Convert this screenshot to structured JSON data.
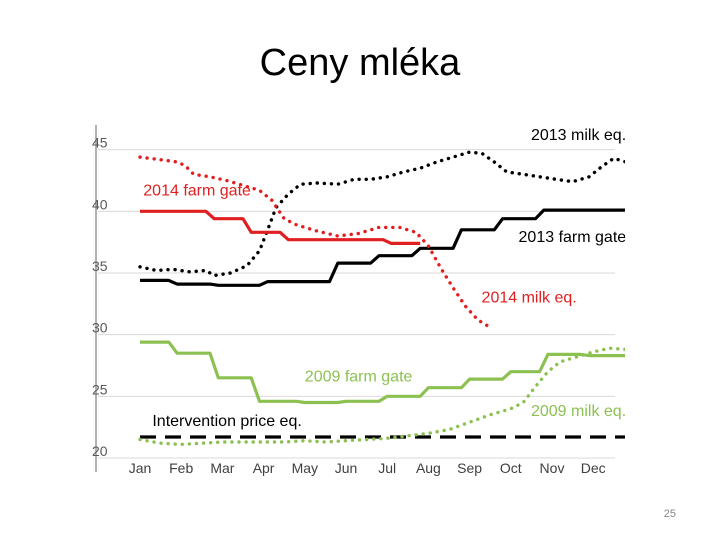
{
  "slide": {
    "title": "Ceny mléka",
    "page_number": "25"
  },
  "chart_data": {
    "type": "line",
    "title": "",
    "xlabel": "",
    "ylabel": "",
    "ylim": [
      20,
      47
    ],
    "yticks": [
      "20",
      "25",
      "30",
      "35",
      "40",
      "45"
    ],
    "months": [
      "Jan",
      "Feb",
      "Mar",
      "Apr",
      "May",
      "Jun",
      "Jul",
      "Aug",
      "Sep",
      "Oct",
      "Nov",
      "Dec"
    ],
    "grid": true,
    "series": [
      {
        "name": "2013 milk eq.",
        "color": "#000000",
        "style": "dotted",
        "points": [
          [
            0,
            35.5
          ],
          [
            0.4,
            35.2
          ],
          [
            0.8,
            35.3
          ],
          [
            1.2,
            35.1
          ],
          [
            1.6,
            35.2
          ],
          [
            1.8,
            34.8
          ],
          [
            2.2,
            35.0
          ],
          [
            2.6,
            35.6
          ],
          [
            2.9,
            36.8
          ],
          [
            3.1,
            38.5
          ],
          [
            3.3,
            40.3
          ],
          [
            3.6,
            41.4
          ],
          [
            3.9,
            42.2
          ],
          [
            4.3,
            42.3
          ],
          [
            4.8,
            42.2
          ],
          [
            5.2,
            42.6
          ],
          [
            5.6,
            42.6
          ],
          [
            6.0,
            42.8
          ],
          [
            6.4,
            43.2
          ],
          [
            6.8,
            43.5
          ],
          [
            7.2,
            44.0
          ],
          [
            7.6,
            44.4
          ],
          [
            8.0,
            44.8
          ],
          [
            8.3,
            44.7
          ],
          [
            8.6,
            44.0
          ],
          [
            8.9,
            43.2
          ],
          [
            9.3,
            43.0
          ],
          [
            9.7,
            42.8
          ],
          [
            10.1,
            42.6
          ],
          [
            10.5,
            42.4
          ],
          [
            10.9,
            42.8
          ],
          [
            11.2,
            43.6
          ],
          [
            11.5,
            44.3
          ],
          [
            11.8,
            44.0
          ]
        ]
      },
      {
        "name": "2013 farm gate",
        "color": "#000000",
        "style": "solid",
        "points": [
          [
            0,
            34.4
          ],
          [
            0.7,
            34.4
          ],
          [
            0.9,
            34.1
          ],
          [
            1.7,
            34.1
          ],
          [
            1.9,
            34.0
          ],
          [
            2.9,
            34.0
          ],
          [
            3.1,
            34.3
          ],
          [
            4.6,
            34.3
          ],
          [
            4.8,
            35.8
          ],
          [
            5.6,
            35.8
          ],
          [
            5.8,
            36.4
          ],
          [
            6.6,
            36.4
          ],
          [
            6.8,
            37.0
          ],
          [
            7.6,
            37.0
          ],
          [
            7.8,
            38.5
          ],
          [
            8.6,
            38.5
          ],
          [
            8.8,
            39.4
          ],
          [
            9.6,
            39.4
          ],
          [
            9.8,
            40.1
          ],
          [
            11.8,
            40.1
          ]
        ]
      },
      {
        "name": "2014 farm gate",
        "color": "#e02020",
        "style": "solid",
        "points": [
          [
            0,
            40.0
          ],
          [
            1.6,
            40.0
          ],
          [
            1.8,
            39.4
          ],
          [
            2.5,
            39.4
          ],
          [
            2.7,
            38.3
          ],
          [
            3.4,
            38.3
          ],
          [
            3.6,
            37.7
          ],
          [
            4.4,
            37.7
          ],
          [
            4.6,
            37.7
          ],
          [
            5.9,
            37.7
          ],
          [
            6.1,
            37.4
          ],
          [
            6.8,
            37.4
          ]
        ]
      },
      {
        "name": "2014 milk eq.",
        "color": "#e02020",
        "style": "dotted",
        "points": [
          [
            0,
            44.4
          ],
          [
            0.7,
            44.1
          ],
          [
            0.9,
            44.0
          ],
          [
            1.1,
            43.7
          ],
          [
            1.3,
            43.0
          ],
          [
            1.7,
            42.8
          ],
          [
            2.1,
            42.5
          ],
          [
            2.5,
            42.1
          ],
          [
            2.9,
            41.7
          ],
          [
            3.2,
            40.9
          ],
          [
            3.5,
            39.4
          ],
          [
            3.8,
            38.9
          ],
          [
            4.3,
            38.4
          ],
          [
            4.8,
            38.0
          ],
          [
            5.3,
            38.2
          ],
          [
            5.8,
            38.7
          ],
          [
            6.3,
            38.7
          ],
          [
            6.7,
            38.3
          ],
          [
            7.0,
            37.2
          ],
          [
            7.3,
            35.4
          ],
          [
            7.6,
            33.8
          ],
          [
            7.9,
            32.3
          ],
          [
            8.2,
            31.2
          ],
          [
            8.5,
            30.6
          ]
        ]
      },
      {
        "name": "2009 farm gate",
        "color": "#8cc152",
        "style": "solid",
        "points": [
          [
            0,
            29.4
          ],
          [
            0.7,
            29.4
          ],
          [
            0.9,
            28.5
          ],
          [
            1.7,
            28.5
          ],
          [
            1.9,
            26.5
          ],
          [
            2.7,
            26.5
          ],
          [
            2.9,
            24.6
          ],
          [
            3.8,
            24.6
          ],
          [
            4.0,
            24.5
          ],
          [
            4.8,
            24.5
          ],
          [
            5.0,
            24.6
          ],
          [
            5.8,
            24.6
          ],
          [
            6.0,
            25.0
          ],
          [
            6.8,
            25.0
          ],
          [
            7.0,
            25.7
          ],
          [
            7.8,
            25.7
          ],
          [
            8.0,
            26.4
          ],
          [
            8.8,
            26.4
          ],
          [
            9.0,
            27.0
          ],
          [
            9.7,
            27.0
          ],
          [
            9.9,
            28.4
          ],
          [
            10.7,
            28.4
          ],
          [
            10.9,
            28.3
          ],
          [
            11.8,
            28.3
          ]
        ]
      },
      {
        "name": "2009 milk eq.",
        "color": "#8cc152",
        "style": "dotted",
        "points": [
          [
            0,
            21.5
          ],
          [
            0.5,
            21.2
          ],
          [
            1.0,
            21.1
          ],
          [
            1.5,
            21.2
          ],
          [
            2.0,
            21.3
          ],
          [
            2.5,
            21.3
          ],
          [
            3.0,
            21.3
          ],
          [
            3.5,
            21.3
          ],
          [
            4.0,
            21.4
          ],
          [
            4.5,
            21.3
          ],
          [
            5.0,
            21.4
          ],
          [
            5.5,
            21.5
          ],
          [
            6.0,
            21.6
          ],
          [
            6.5,
            21.8
          ],
          [
            7.0,
            22.0
          ],
          [
            7.5,
            22.3
          ],
          [
            8.0,
            22.9
          ],
          [
            8.5,
            23.5
          ],
          [
            9.0,
            24.0
          ],
          [
            9.3,
            24.5
          ],
          [
            9.6,
            25.8
          ],
          [
            9.9,
            27.0
          ],
          [
            10.2,
            27.8
          ],
          [
            10.6,
            28.2
          ],
          [
            11.0,
            28.6
          ],
          [
            11.4,
            28.9
          ],
          [
            11.8,
            28.8
          ]
        ]
      },
      {
        "name": "Intervention price eq.",
        "color": "#000000",
        "style": "dashed",
        "points": [
          [
            0,
            21.7
          ],
          [
            11.8,
            21.7
          ]
        ]
      }
    ],
    "annotations": [
      {
        "text": "2013 milk eq.",
        "color": "#000000",
        "anchor": "end",
        "month": 11.8,
        "value": 45.8
      },
      {
        "text": "2014 farm gate",
        "color": "#e02020",
        "anchor": "start",
        "month": 0.08,
        "value": 41.3
      },
      {
        "text": "2013 farm gate",
        "color": "#000000",
        "anchor": "end",
        "month": 11.8,
        "value": 37.5
      },
      {
        "text": "2014 milk eq.",
        "color": "#e02020",
        "anchor": "end",
        "month": 10.6,
        "value": 32.6
      },
      {
        "text": "2009 farm gate",
        "color": "#8cc152",
        "anchor": "start",
        "month": 4.0,
        "value": 26.2
      },
      {
        "text": "2009 milk eq.",
        "color": "#8cc152",
        "anchor": "end",
        "month": 11.8,
        "value": 23.4
      },
      {
        "text": "Intervention price eq.",
        "color": "#000000",
        "anchor": "start",
        "month": 0.3,
        "value": 22.6
      }
    ]
  }
}
